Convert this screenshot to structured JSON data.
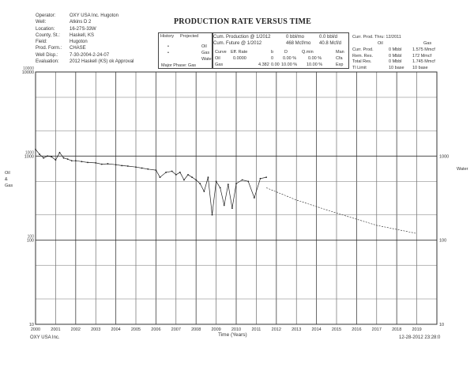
{
  "header": {
    "title": "PRODUCTION RATE VERSUS TIME",
    "well_labels": [
      "Operator:",
      "Well:",
      "Location:",
      "County, St.:",
      "Field:",
      "Prod. Form.:",
      "Well Disp.:",
      "Evaluation:"
    ],
    "well_values": [
      "OXY USA Inc. Hugoton",
      "Atkins D 2",
      "16-27S-33W",
      "Haskell, KS",
      "Hugoton",
      "CHASE",
      "7-30-2004-2-24-07",
      "2012 Haskell (KS) ok Approval"
    ],
    "legend_box": {
      "title_a": "History",
      "title_b": "Projected",
      "row1_right": "Oil",
      "row2_right": "Gas",
      "row3_right": "Water",
      "row4": "Major Phase: Gas"
    },
    "summary_left": [
      "Cum. Production @ 1/2012",
      "Cum. Future @ 1/2012"
    ],
    "summary_mid": [
      "0 bbl/mo",
      "468 Mcf/mo"
    ],
    "summary_right": [
      "0.0 bbl/d",
      "40.8 Mcf/d"
    ],
    "summary_far": "Curr. Prod. Thru: 12/2011",
    "curve_table": {
      "headers": [
        "Curve",
        "Eff. Rate",
        "b",
        "D",
        "Q.min",
        "Man"
      ],
      "rows": [
        [
          "Oil",
          "0.0000",
          "0",
          "0.00 %",
          "0.00 %",
          "Cfa"
        ],
        [
          "Gas",
          "4.382",
          "0.00",
          "10.00 %",
          "10.00 %",
          "Exp"
        ]
      ]
    },
    "reserves": {
      "labels": [
        "Curr. Prod.",
        "Rem. Res.",
        "Total Res.",
        "Tl Limit"
      ],
      "oil_header": "Oil",
      "gas_header": "Gas",
      "oil_values": [
        "0 Mbbl",
        "0 Mbbl",
        "0 Mbbl",
        "10 base"
      ],
      "gas_values": [
        "1.575 Mmcf",
        "172 Mmcf",
        "1.745 Mmcf",
        "10 base"
      ]
    }
  },
  "chart_data": {
    "type": "line",
    "title": "PRODUCTION RATE VERSUS TIME",
    "xlabel": "Time (Years)",
    "ylabel_left": "Oil & Gas",
    "ylabel_right": "Water",
    "x_ticks": [
      "2000",
      "2001",
      "2002",
      "2003",
      "2004",
      "2005",
      "2006",
      "2007",
      "2008",
      "2009",
      "2010",
      "2011",
      "2012",
      "2013",
      "2014",
      "2015",
      "2016",
      "2017",
      "2018",
      "2019"
    ],
    "xlim": [
      2000,
      2020
    ],
    "y_scale": "log",
    "ylim": [
      10,
      10000
    ],
    "y_ticks_left": [
      "10000",
      "1000",
      "100",
      "10"
    ],
    "y_ticks_left_extra": [
      "10000",
      "1000",
      "100"
    ],
    "y_ticks_right": [
      "1000",
      "100",
      "10"
    ],
    "grid": true,
    "series": [
      {
        "name": "Gas",
        "x": [
          2000.0,
          2000.2,
          2000.4,
          2000.6,
          2000.8,
          2001.0,
          2001.2,
          2001.4,
          2001.6,
          2001.8,
          2002.0,
          2002.3,
          2002.6,
          2003.0,
          2003.3,
          2003.6,
          2004.0,
          2004.3,
          2004.6,
          2005.0,
          2005.3,
          2005.6,
          2006.0,
          2006.2,
          2006.5,
          2006.8,
          2007.0,
          2007.2,
          2007.4,
          2007.6,
          2007.8,
          2008.0,
          2008.2,
          2008.4,
          2008.6,
          2008.8,
          2009.0,
          2009.2,
          2009.4,
          2009.6,
          2009.8,
          2010.0,
          2010.3,
          2010.6,
          2010.9,
          2011.2,
          2011.5
        ],
        "y": [
          1200,
          1050,
          950,
          1000,
          980,
          900,
          1100,
          950,
          920,
          880,
          880,
          860,
          840,
          830,
          800,
          810,
          790,
          770,
          760,
          740,
          720,
          700,
          680,
          560,
          640,
          660,
          600,
          640,
          520,
          600,
          560,
          520,
          470,
          380,
          560,
          200,
          500,
          420,
          260,
          460,
          240,
          470,
          520,
          500,
          320,
          540,
          560
        ]
      },
      {
        "name": "Gas Projected",
        "x": [
          2011.5,
          2013,
          2015,
          2017,
          2019
        ],
        "y": [
          420,
          300,
          210,
          150,
          120
        ]
      }
    ]
  },
  "footer": {
    "left": "OXY USA Inc.",
    "right": "12-28-2012 23:28:0"
  }
}
